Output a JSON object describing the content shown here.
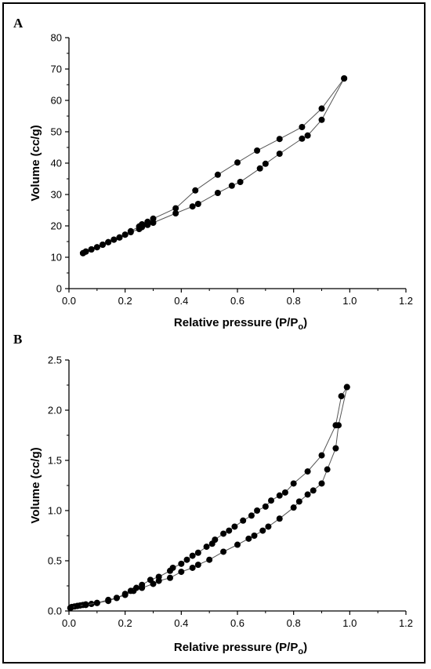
{
  "chart_data": [
    {
      "panel": "A",
      "type": "line",
      "xlabel_main": "Relative pressure (P/P",
      "xlabel_sub": "o",
      "xlabel_end": ")",
      "ylabel": "Volume (cc/g)",
      "xlim": [
        0,
        1.2
      ],
      "ylim": [
        0,
        80
      ],
      "xticks": [
        "0.0",
        "0.2",
        "0.4",
        "0.6",
        "0.8",
        "1.0",
        "1.2"
      ],
      "yticks": [
        "0",
        "10",
        "20",
        "30",
        "40",
        "50",
        "60",
        "70",
        "80"
      ],
      "grid": false,
      "series": [
        {
          "x": [
            0.05,
            0.06,
            0.08,
            0.1,
            0.12,
            0.14,
            0.16,
            0.18,
            0.2,
            0.22,
            0.25,
            0.26,
            0.28,
            0.3,
            0.38,
            0.44,
            0.46,
            0.53,
            0.58,
            0.61,
            0.68,
            0.7,
            0.75,
            0.83,
            0.85,
            0.9,
            0.98
          ],
          "y": [
            11.3,
            11.8,
            12.5,
            13.2,
            14.0,
            14.8,
            15.6,
            16.3,
            17.2,
            18.0,
            19.0,
            19.6,
            20.3,
            21.0,
            24.0,
            26.2,
            27.0,
            30.5,
            32.8,
            34.0,
            38.3,
            39.8,
            43.0,
            47.8,
            48.8,
            53.8,
            67.0
          ]
        },
        {
          "x": [
            0.98,
            0.9,
            0.83,
            0.75,
            0.67,
            0.6,
            0.53,
            0.45,
            0.38,
            0.3,
            0.28,
            0.26,
            0.25,
            0.22,
            0.2,
            0.18,
            0.16,
            0.14,
            0.12,
            0.1,
            0.08,
            0.06,
            0.05
          ],
          "y": [
            67.0,
            57.4,
            51.5,
            47.7,
            44.0,
            40.2,
            36.3,
            31.3,
            25.6,
            22.3,
            21.3,
            20.5,
            19.8,
            18.3,
            17.2,
            16.3,
            15.6,
            14.8,
            14.0,
            13.2,
            12.5,
            11.8,
            11.3
          ]
        }
      ]
    },
    {
      "panel": "B",
      "type": "line",
      "xlabel_main": "Relative pressure (P/P",
      "xlabel_sub": "o",
      "xlabel_end": ")",
      "ylabel": "Volume (cc/g)",
      "xlim": [
        0,
        1.2
      ],
      "ylim": [
        0,
        2.5
      ],
      "xticks": [
        "0.0",
        "0.2",
        "0.4",
        "0.6",
        "0.8",
        "1.0",
        "1.2"
      ],
      "yticks": [
        "0.0",
        "0.5",
        "1.0",
        "1.5",
        "2.0",
        "2.5"
      ],
      "grid": false,
      "series": [
        {
          "x": [
            0.005,
            0.01,
            0.02,
            0.03,
            0.04,
            0.05,
            0.06,
            0.08,
            0.1,
            0.14,
            0.17,
            0.2,
            0.23,
            0.26,
            0.3,
            0.32,
            0.36,
            0.4,
            0.44,
            0.46,
            0.5,
            0.55,
            0.6,
            0.64,
            0.66,
            0.69,
            0.71,
            0.75,
            0.8,
            0.82,
            0.85,
            0.87,
            0.9,
            0.92,
            0.95,
            0.96,
            0.99
          ],
          "y": [
            0.03,
            0.04,
            0.045,
            0.05,
            0.055,
            0.06,
            0.065,
            0.07,
            0.08,
            0.1,
            0.13,
            0.16,
            0.2,
            0.23,
            0.27,
            0.3,
            0.33,
            0.39,
            0.43,
            0.46,
            0.51,
            0.59,
            0.66,
            0.72,
            0.75,
            0.8,
            0.84,
            0.92,
            1.03,
            1.09,
            1.16,
            1.2,
            1.27,
            1.41,
            1.62,
            1.85,
            2.23
          ]
        },
        {
          "x": [
            0.99,
            0.97,
            0.95,
            0.9,
            0.85,
            0.8,
            0.77,
            0.75,
            0.72,
            0.7,
            0.67,
            0.65,
            0.62,
            0.59,
            0.57,
            0.55,
            0.52,
            0.51,
            0.49,
            0.46,
            0.44,
            0.42,
            0.4,
            0.37,
            0.36,
            0.32,
            0.29,
            0.26,
            0.24,
            0.22,
            0.2,
            0.17,
            0.14,
            0.1,
            0.06,
            0.03,
            0.005
          ],
          "y": [
            2.23,
            2.14,
            1.85,
            1.55,
            1.39,
            1.27,
            1.18,
            1.15,
            1.1,
            1.04,
            1.0,
            0.95,
            0.9,
            0.84,
            0.8,
            0.77,
            0.71,
            0.67,
            0.64,
            0.58,
            0.55,
            0.51,
            0.47,
            0.43,
            0.4,
            0.34,
            0.31,
            0.26,
            0.23,
            0.2,
            0.17,
            0.13,
            0.11,
            0.08,
            0.06,
            0.05,
            0.03
          ]
        }
      ]
    }
  ]
}
